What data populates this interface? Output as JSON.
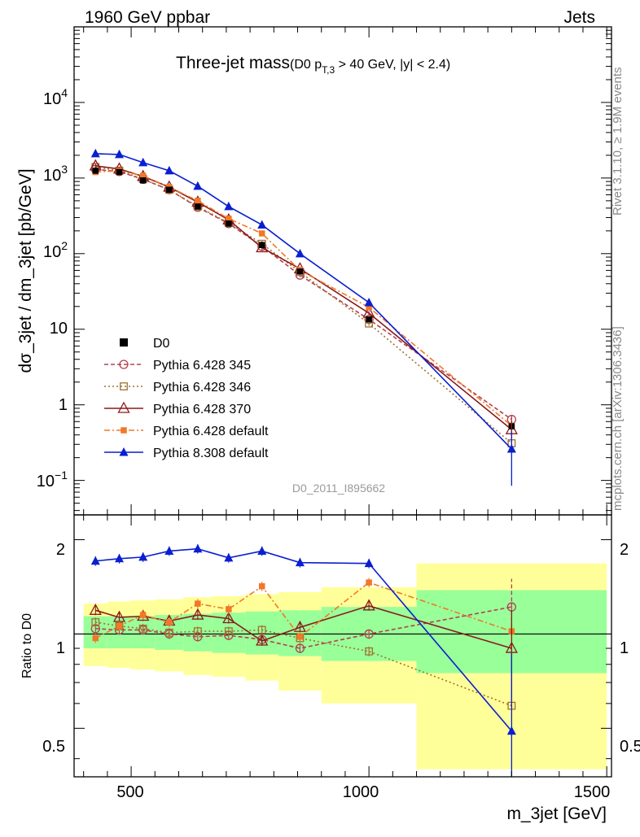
{
  "header": {
    "left": "1960 GeV ppbar",
    "right": "Jets"
  },
  "title": {
    "main": "Three-jet mass",
    "sub_pre": "(D0 p",
    "sub_subscript": "T,3",
    "sub_post": " > 40 GeV, |y| < 2.4)"
  },
  "side": {
    "rivet": "Rivet 3.1.10, ≥ 1.9M events",
    "mcplots": "mcplots.cern.ch [arXiv:1306.3436]"
  },
  "watermark": "D0_2011_I895662",
  "chart_data": {
    "type": "line",
    "xlabel": "m_3jet [GeV]",
    "ylabel": "dσ_3jet / dm_3jet [pb/GeV]",
    "ratio_ylabel": "Ratio to D0",
    "xlim": [
      380,
      1510
    ],
    "ylim": [
      0.035,
      100000
    ],
    "yscale": "log",
    "ratio_ylim": [
      0.35,
      2.4
    ],
    "ratio_yscale": "log",
    "x_ticks": [
      "500",
      "1000",
      "1500"
    ],
    "y_ticks": [
      "10^-1",
      "1",
      "10",
      "10^2",
      "10^3",
      "10^4"
    ],
    "ratio_ticks": [
      "0.5",
      "1",
      "2"
    ],
    "legend_position": "bottom-left",
    "x": [
      425,
      475,
      525,
      580,
      640,
      705,
      775,
      855,
      1000,
      1300
    ],
    "bin_edges": [
      400,
      450,
      500,
      550,
      610,
      670,
      740,
      810,
      900,
      1100,
      1500
    ],
    "band_inner": [
      [
        0.9,
        1.14
      ],
      [
        0.9,
        1.14
      ],
      [
        0.9,
        1.14
      ],
      [
        0.89,
        1.15
      ],
      [
        0.88,
        1.16
      ],
      [
        0.87,
        1.17
      ],
      [
        0.86,
        1.18
      ],
      [
        0.85,
        1.19
      ],
      [
        0.82,
        1.22
      ],
      [
        0.75,
        1.38
      ]
    ],
    "band_outer": [
      [
        0.79,
        1.25
      ],
      [
        0.78,
        1.27
      ],
      [
        0.77,
        1.28
      ],
      [
        0.76,
        1.29
      ],
      [
        0.74,
        1.31
      ],
      [
        0.73,
        1.32
      ],
      [
        0.71,
        1.34
      ],
      [
        0.66,
        1.36
      ],
      [
        0.6,
        1.41
      ],
      [
        0.37,
        1.68
      ]
    ],
    "series": [
      {
        "name": "D0",
        "values": [
          1250,
          1200,
          930,
          700,
          420,
          250,
          130,
          58,
          13.5,
          0.52
        ],
        "ratio": [
          1,
          1,
          1,
          1,
          1,
          1,
          1,
          1,
          1,
          1
        ],
        "color": "#000000",
        "marker": "square-filled",
        "dash": "none"
      },
      {
        "name": "Pythia 6.428 345",
        "values": [
          1300,
          1220,
          960,
          700,
          410,
          250,
          125,
          52,
          13.5,
          0.64
        ],
        "ratio": [
          1.04,
          1.03,
          1.03,
          1.0,
          0.98,
          0.99,
          0.96,
          0.9,
          1.0,
          1.22
        ],
        "color": "#b24050",
        "marker": "circle-open",
        "dash": "5,3"
      },
      {
        "name": "Pythia 6.428 346",
        "values": [
          1400,
          1250,
          970,
          700,
          420,
          255,
          135,
          57,
          11.9,
          0.31
        ],
        "ratio": [
          1.09,
          1.06,
          1.04,
          1.01,
          1.02,
          1.02,
          1.03,
          0.97,
          0.88,
          0.59
        ],
        "color": "#a07030",
        "marker": "square-open",
        "dash": "2,3"
      },
      {
        "name": "Pythia 6.428 370",
        "values": [
          1450,
          1320,
          1050,
          760,
          480,
          280,
          120,
          63,
          16.3,
          0.47
        ],
        "ratio": [
          1.19,
          1.13,
          1.14,
          1.1,
          1.15,
          1.12,
          0.95,
          1.05,
          1.23,
          0.9
        ],
        "color": "#8b1a1a",
        "marker": "triangle-open",
        "dash": "none"
      },
      {
        "name": "Pythia 6.428 default",
        "values": [
          1200,
          1250,
          1070,
          760,
          500,
          290,
          185,
          60,
          19.5,
          0.53
        ],
        "ratio": [
          0.97,
          1.06,
          1.15,
          1.09,
          1.25,
          1.2,
          1.42,
          0.98,
          1.46,
          1.02
        ],
        "color": "#f07828",
        "marker": "square-filled",
        "dash": "7,3,2,3"
      },
      {
        "name": "Pythia 8.308 default",
        "values": [
          2100,
          2050,
          1600,
          1250,
          780,
          420,
          240,
          100,
          22.5,
          0.26
        ],
        "ratio": [
          1.71,
          1.74,
          1.76,
          1.84,
          1.87,
          1.75,
          1.84,
          1.69,
          1.68,
          0.49
        ],
        "color": "#0a1fd0",
        "marker": "triangle-filled",
        "dash": "none"
      }
    ],
    "errors_last_bin": {
      "Pythia 6.428 345": [
        0.52,
        0.78
      ],
      "Pythia 6.428 370": [
        0.32,
        0.62
      ],
      "Pythia 8.308 default": [
        0.085,
        0.45
      ]
    }
  }
}
